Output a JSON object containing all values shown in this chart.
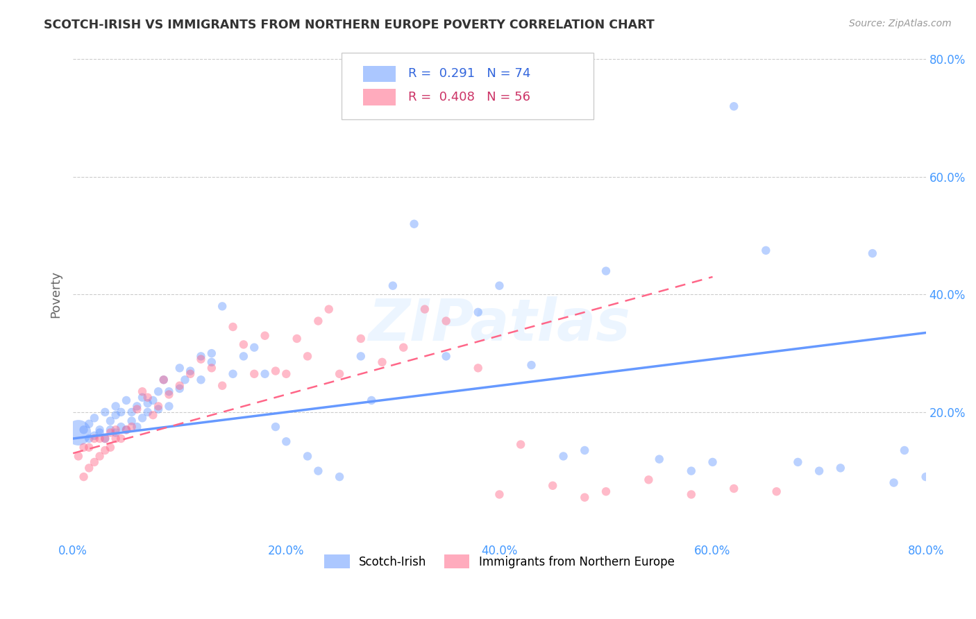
{
  "title": "SCOTCH-IRISH VS IMMIGRANTS FROM NORTHERN EUROPE POVERTY CORRELATION CHART",
  "source": "Source: ZipAtlas.com",
  "ylabel": "Poverty",
  "xlim": [
    0.0,
    0.8
  ],
  "ylim": [
    -0.02,
    0.82
  ],
  "xtick_labels": [
    "0.0%",
    "20.0%",
    "40.0%",
    "60.0%",
    "80.0%"
  ],
  "xtick_vals": [
    0.0,
    0.2,
    0.4,
    0.6,
    0.8
  ],
  "ytick_vals": [
    0.2,
    0.4,
    0.6,
    0.8
  ],
  "right_ytick_labels": [
    "20.0%",
    "40.0%",
    "60.0%",
    "80.0%"
  ],
  "right_ytick_vals": [
    0.2,
    0.4,
    0.6,
    0.8
  ],
  "series1_label": "Scotch-Irish",
  "series1_color": "#6699ff",
  "series2_label": "Immigrants from Northern Europe",
  "series2_color": "#ff6688",
  "watermark": "ZIPatlas",
  "background_color": "#ffffff",
  "grid_color": "#cccccc",
  "title_color": "#333333",
  "right_axis_label_color": "#4499ff",
  "bottom_axis_label_color": "#4499ff",
  "scotch_irish_x": [
    0.005,
    0.01,
    0.015,
    0.015,
    0.02,
    0.02,
    0.025,
    0.025,
    0.03,
    0.03,
    0.035,
    0.035,
    0.04,
    0.04,
    0.04,
    0.045,
    0.045,
    0.05,
    0.05,
    0.055,
    0.055,
    0.06,
    0.06,
    0.065,
    0.065,
    0.07,
    0.07,
    0.075,
    0.08,
    0.08,
    0.085,
    0.09,
    0.09,
    0.1,
    0.1,
    0.105,
    0.11,
    0.12,
    0.12,
    0.13,
    0.13,
    0.14,
    0.15,
    0.16,
    0.17,
    0.18,
    0.19,
    0.2,
    0.22,
    0.23,
    0.25,
    0.27,
    0.28,
    0.3,
    0.32,
    0.35,
    0.38,
    0.4,
    0.43,
    0.46,
    0.48,
    0.5,
    0.55,
    0.58,
    0.6,
    0.62,
    0.65,
    0.68,
    0.7,
    0.72,
    0.75,
    0.77,
    0.78,
    0.8
  ],
  "scotch_irish_y": [
    0.165,
    0.17,
    0.155,
    0.18,
    0.16,
    0.19,
    0.165,
    0.17,
    0.155,
    0.2,
    0.17,
    0.185,
    0.165,
    0.195,
    0.21,
    0.175,
    0.2,
    0.17,
    0.22,
    0.185,
    0.2,
    0.175,
    0.21,
    0.19,
    0.225,
    0.2,
    0.215,
    0.22,
    0.205,
    0.235,
    0.255,
    0.21,
    0.235,
    0.24,
    0.275,
    0.255,
    0.27,
    0.295,
    0.255,
    0.285,
    0.3,
    0.38,
    0.265,
    0.295,
    0.31,
    0.265,
    0.175,
    0.15,
    0.125,
    0.1,
    0.09,
    0.295,
    0.22,
    0.415,
    0.52,
    0.295,
    0.37,
    0.415,
    0.28,
    0.125,
    0.135,
    0.44,
    0.12,
    0.1,
    0.115,
    0.72,
    0.475,
    0.115,
    0.1,
    0.105,
    0.47,
    0.08,
    0.135,
    0.09
  ],
  "scotch_irish_size": [
    700,
    80,
    80,
    80,
    80,
    80,
    80,
    80,
    80,
    80,
    80,
    80,
    80,
    80,
    80,
    80,
    80,
    80,
    80,
    80,
    80,
    80,
    80,
    80,
    80,
    80,
    80,
    80,
    80,
    80,
    80,
    80,
    80,
    80,
    80,
    80,
    80,
    80,
    80,
    80,
    80,
    80,
    80,
    80,
    80,
    80,
    80,
    80,
    80,
    80,
    80,
    80,
    80,
    80,
    80,
    80,
    80,
    80,
    80,
    80,
    80,
    80,
    80,
    80,
    80,
    80,
    80,
    80,
    80,
    80,
    80,
    80,
    80,
    80
  ],
  "northern_europe_x": [
    0.005,
    0.01,
    0.01,
    0.015,
    0.015,
    0.02,
    0.02,
    0.025,
    0.025,
    0.03,
    0.03,
    0.035,
    0.035,
    0.04,
    0.04,
    0.045,
    0.05,
    0.055,
    0.06,
    0.065,
    0.07,
    0.075,
    0.08,
    0.085,
    0.09,
    0.1,
    0.11,
    0.12,
    0.13,
    0.14,
    0.15,
    0.16,
    0.17,
    0.18,
    0.19,
    0.2,
    0.21,
    0.22,
    0.23,
    0.24,
    0.25,
    0.27,
    0.29,
    0.31,
    0.33,
    0.35,
    0.38,
    0.4,
    0.42,
    0.45,
    0.48,
    0.5,
    0.54,
    0.58,
    0.62,
    0.66
  ],
  "northern_europe_y": [
    0.125,
    0.09,
    0.14,
    0.105,
    0.14,
    0.115,
    0.155,
    0.125,
    0.155,
    0.135,
    0.155,
    0.14,
    0.165,
    0.155,
    0.17,
    0.155,
    0.17,
    0.175,
    0.205,
    0.235,
    0.225,
    0.195,
    0.21,
    0.255,
    0.23,
    0.245,
    0.265,
    0.29,
    0.275,
    0.245,
    0.345,
    0.315,
    0.265,
    0.33,
    0.27,
    0.265,
    0.325,
    0.295,
    0.355,
    0.375,
    0.265,
    0.325,
    0.285,
    0.31,
    0.375,
    0.355,
    0.275,
    0.06,
    0.145,
    0.075,
    0.055,
    0.065,
    0.085,
    0.06,
    0.07,
    0.065
  ],
  "northern_europe_size": [
    80,
    80,
    80,
    80,
    80,
    80,
    80,
    80,
    80,
    80,
    80,
    80,
    80,
    80,
    80,
    80,
    80,
    80,
    80,
    80,
    80,
    80,
    80,
    80,
    80,
    80,
    80,
    80,
    80,
    80,
    80,
    80,
    80,
    80,
    80,
    80,
    80,
    80,
    80,
    80,
    80,
    80,
    80,
    80,
    80,
    80,
    80,
    80,
    80,
    80,
    80,
    80,
    80,
    80,
    80,
    80
  ],
  "trendline1_x": [
    0.0,
    0.8
  ],
  "trendline1_y": [
    0.155,
    0.335
  ],
  "trendline2_x": [
    0.0,
    0.6
  ],
  "trendline2_y": [
    0.13,
    0.43
  ]
}
